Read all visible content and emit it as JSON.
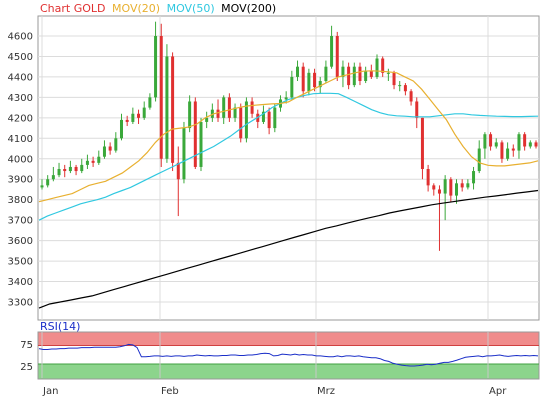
{
  "chart_data": [
    {
      "type": "candlestick",
      "legend_placement": "top-left",
      "grid": true,
      "ylim": [
        3200,
        4700
      ],
      "y_ticks": [
        "4600",
        "4500",
        "4400",
        "4300",
        "4200",
        "4100",
        "4000",
        "3900",
        "3800",
        "3700",
        "3600",
        "3500",
        "3400",
        "3300"
      ],
      "x_ticks": [
        "Jan",
        "Feb",
        "Mrz",
        "Apr"
      ],
      "legend": [
        {
          "label": "Chart GOLD",
          "color": "#e03030"
        },
        {
          "label": "MOV(20)",
          "color": "#e8b030"
        },
        {
          "label": "MOV(50)",
          "color": "#30c8e0"
        },
        {
          "label": "MOV(200)",
          "color": "#000000"
        }
      ],
      "colors": {
        "up": "#3aa83a",
        "down": "#e03030"
      },
      "candles": [
        [
          3860,
          3870,
          3900,
          3850
        ],
        [
          3870,
          3900,
          3920,
          3860
        ],
        [
          3900,
          3920,
          3960,
          3890
        ],
        [
          3920,
          3950,
          3980,
          3910
        ],
        [
          3950,
          3940,
          3970,
          3910
        ],
        [
          3940,
          3960,
          3990,
          3930
        ],
        [
          3960,
          3940,
          3970,
          3920
        ],
        [
          3940,
          3970,
          4000,
          3930
        ],
        [
          3970,
          3990,
          4020,
          3950
        ],
        [
          3990,
          3980,
          4010,
          3960
        ],
        [
          3980,
          4010,
          4040,
          3970
        ],
        [
          4010,
          4060,
          4090,
          4000
        ],
        [
          4060,
          4040,
          4080,
          4020
        ],
        [
          4040,
          4100,
          4130,
          4030
        ],
        [
          4100,
          4190,
          4220,
          4090
        ],
        [
          4190,
          4180,
          4210,
          4160
        ],
        [
          4180,
          4220,
          4250,
          4170
        ],
        [
          4220,
          4200,
          4240,
          4170
        ],
        [
          4200,
          4250,
          4280,
          4190
        ],
        [
          4250,
          4300,
          4320,
          4240
        ],
        [
          4300,
          4600,
          4670,
          4280
        ],
        [
          4600,
          4000,
          4660,
          3960
        ],
        [
          4000,
          4500,
          4560,
          3980
        ],
        [
          4500,
          3980,
          4520,
          3940
        ],
        [
          3980,
          3900,
          4060,
          3720
        ],
        [
          3900,
          4150,
          4180,
          3880
        ],
        [
          4150,
          4280,
          4310,
          4130
        ],
        [
          4280,
          3960,
          4300,
          3950
        ],
        [
          3960,
          4180,
          4200,
          3940
        ],
        [
          4180,
          4200,
          4230,
          4150
        ],
        [
          4200,
          4240,
          4270,
          4180
        ],
        [
          4240,
          4200,
          4290,
          4180
        ],
        [
          4200,
          4300,
          4310,
          4170
        ],
        [
          4300,
          4200,
          4320,
          4180
        ],
        [
          4200,
          4250,
          4270,
          4180
        ],
        [
          4250,
          4100,
          4270,
          4080
        ],
        [
          4100,
          4280,
          4300,
          4080
        ],
        [
          4280,
          4220,
          4300,
          4200
        ],
        [
          4220,
          4180,
          4240,
          4150
        ],
        [
          4180,
          4230,
          4260,
          4170
        ],
        [
          4230,
          4150,
          4250,
          4120
        ],
        [
          4150,
          4250,
          4270,
          4130
        ],
        [
          4250,
          4290,
          4310,
          4230
        ],
        [
          4290,
          4300,
          4330,
          4270
        ],
        [
          4300,
          4400,
          4430,
          4290
        ],
        [
          4400,
          4450,
          4480,
          4380
        ],
        [
          4450,
          4330,
          4470,
          4300
        ],
        [
          4330,
          4420,
          4440,
          4310
        ],
        [
          4420,
          4350,
          4440,
          4330
        ],
        [
          4350,
          4380,
          4400,
          4320
        ],
        [
          4380,
          4450,
          4480,
          4370
        ],
        [
          4450,
          4600,
          4650,
          4440
        ],
        [
          4600,
          4400,
          4620,
          4380
        ],
        [
          4400,
          4450,
          4480,
          4350
        ],
        [
          4450,
          4360,
          4470,
          4340
        ],
        [
          4360,
          4450,
          4470,
          4350
        ],
        [
          4450,
          4380,
          4470,
          4360
        ],
        [
          4380,
          4430,
          4450,
          4370
        ],
        [
          4430,
          4400,
          4460,
          4390
        ],
        [
          4400,
          4490,
          4510,
          4390
        ],
        [
          4490,
          4420,
          4500,
          4400
        ],
        [
          4420,
          4420,
          4440,
          4380
        ],
        [
          4420,
          4360,
          4430,
          4340
        ],
        [
          4360,
          4360,
          4380,
          4330
        ],
        [
          4360,
          4330,
          4370,
          4310
        ],
        [
          4330,
          4280,
          4340,
          4260
        ],
        [
          4280,
          4200,
          4300,
          4150
        ],
        [
          4200,
          3950,
          4200,
          3900
        ],
        [
          3950,
          3870,
          3970,
          3840
        ],
        [
          3870,
          3850,
          3880,
          3820
        ],
        [
          3850,
          3830,
          3870,
          3550
        ],
        [
          3830,
          3900,
          3920,
          3700
        ],
        [
          3900,
          3820,
          3910,
          3790
        ],
        [
          3820,
          3880,
          3900,
          3780
        ],
        [
          3880,
          3860,
          3900,
          3840
        ],
        [
          3860,
          3880,
          3900,
          3850
        ],
        [
          3880,
          3940,
          3960,
          3850
        ],
        [
          3940,
          4050,
          4090,
          3930
        ],
        [
          4050,
          4120,
          4130,
          4000
        ],
        [
          4120,
          4060,
          4130,
          4040
        ],
        [
          4060,
          4080,
          4100,
          4050
        ],
        [
          4080,
          4000,
          4090,
          3980
        ],
        [
          4000,
          4050,
          4080,
          3990
        ],
        [
          4050,
          4040,
          4070,
          4010
        ],
        [
          4040,
          4120,
          4130,
          4000
        ],
        [
          4120,
          4060,
          4130,
          4040
        ],
        [
          4060,
          4080,
          4090,
          4050
        ],
        [
          4080,
          4060,
          4090,
          4050
        ]
      ],
      "ma20": [
        3790,
        3800,
        3810,
        3820,
        3830,
        3850,
        3870,
        3880,
        3890,
        3910,
        3930,
        3960,
        3990,
        4030,
        4080,
        4120,
        4145,
        4150,
        4155,
        4170,
        4200,
        4220,
        4230,
        4240,
        4250,
        4258,
        4262,
        4265,
        4268,
        4270,
        4278,
        4300,
        4320,
        4340,
        4360,
        4380,
        4400,
        4410,
        4420,
        4428,
        4430,
        4428,
        4425,
        4420,
        4400,
        4380,
        4340,
        4290,
        4240,
        4190,
        4120,
        4060,
        4010,
        3980,
        3968,
        3965,
        3965,
        3970,
        3975,
        3980,
        3990
      ],
      "ma50": [
        3700,
        3720,
        3735,
        3750,
        3765,
        3780,
        3790,
        3800,
        3812,
        3830,
        3845,
        3860,
        3880,
        3900,
        3920,
        3940,
        3960,
        3980,
        4000,
        4020,
        4040,
        4060,
        4085,
        4110,
        4140,
        4170,
        4195,
        4220,
        4250,
        4270,
        4290,
        4300,
        4310,
        4318,
        4320,
        4320,
        4318,
        4300,
        4280,
        4260,
        4240,
        4225,
        4215,
        4210,
        4208,
        4205,
        4205,
        4205,
        4210,
        4215,
        4220,
        4220,
        4215,
        4212,
        4210,
        4208,
        4207,
        4206,
        4206,
        4207,
        4208
      ],
      "ma200": [
        3270,
        3290,
        3300,
        3310,
        3320,
        3330,
        3345,
        3360,
        3375,
        3390,
        3405,
        3420,
        3435,
        3450,
        3465,
        3480,
        3495,
        3510,
        3525,
        3540,
        3555,
        3570,
        3585,
        3600,
        3615,
        3630,
        3645,
        3660,
        3672,
        3685,
        3698,
        3710,
        3722,
        3735,
        3745,
        3755,
        3765,
        3775,
        3783,
        3790,
        3798,
        3805,
        3812,
        3818,
        3825,
        3832,
        3838,
        3845
      ],
      "dates_shown": true
    },
    {
      "type": "line",
      "legend": [
        {
          "label": "RSI(14)",
          "color": "#1a2ec8"
        }
      ],
      "ylim": [
        0,
        100
      ],
      "y_ticks": [
        "75",
        "25"
      ],
      "bands": {
        "upper": [
          70,
          100
        ],
        "lower": [
          0,
          30
        ],
        "upper_color": "#f08080",
        "lower_color": "#80d080"
      },
      "values": [
        64,
        62,
        62,
        63,
        63,
        64,
        64,
        65,
        65,
        65,
        66,
        66,
        66,
        67,
        67,
        67,
        67,
        67,
        67,
        68,
        70,
        73,
        72,
        66,
        46,
        46,
        47,
        48,
        48,
        47,
        48,
        47,
        48,
        48,
        47,
        48,
        48,
        50,
        49,
        48,
        49,
        48,
        48,
        49,
        49,
        50,
        50,
        49,
        49,
        50,
        50,
        51,
        53,
        54,
        53,
        48,
        49,
        52,
        51,
        50,
        52,
        50,
        51,
        50,
        50,
        48,
        48,
        47,
        46,
        46,
        48,
        46,
        48,
        48,
        47,
        48,
        46,
        45,
        44,
        44,
        42,
        38,
        36,
        32,
        30,
        28,
        27,
        26,
        26,
        27,
        28,
        30,
        29,
        30,
        32,
        34,
        34,
        36,
        39,
        42,
        45,
        46,
        47,
        48,
        46,
        48,
        48,
        49,
        50,
        48,
        47,
        48,
        49,
        48,
        49,
        48,
        49,
        48
      ]
    }
  ]
}
